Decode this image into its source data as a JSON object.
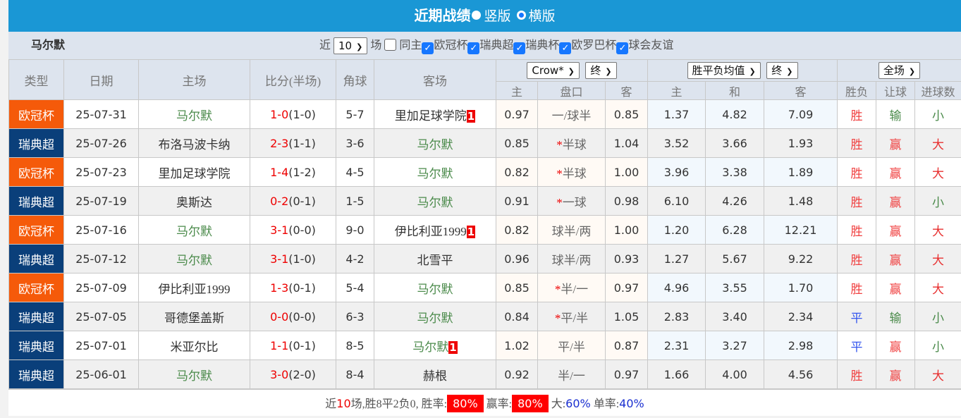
{
  "title": {
    "text": "近期战绩",
    "option_vertical": "竖版",
    "option_horizontal": "横版",
    "selected": "横版"
  },
  "filter": {
    "team": "马尔默",
    "near_label": "近",
    "count_value": "10",
    "matches_label": "场",
    "same_home_label": "同主",
    "same_home_checked": false,
    "leagues": [
      {
        "label": "欧冠杯",
        "checked": true
      },
      {
        "label": "瑞典超",
        "checked": true
      },
      {
        "label": "瑞典杯",
        "checked": true
      },
      {
        "label": "欧罗巴杯",
        "checked": true
      },
      {
        "label": "球会友谊",
        "checked": true
      }
    ]
  },
  "header": {
    "type": "类型",
    "date": "日期",
    "home": "主场",
    "score": "比分(半场)",
    "corners": "角球",
    "away": "客场",
    "ah_company": "Crow*",
    "ah_stage": "终",
    "ep_type": "胜平负均值",
    "ep_stage": "终",
    "period": "全场",
    "sub": [
      "主",
      "盘口",
      "客",
      "主",
      "和",
      "客",
      "胜负",
      "让球",
      "进球数"
    ]
  },
  "colors": {
    "ucl": "#f55a0a",
    "swe": "#0a3f7a",
    "win": "#f04040",
    "lose": "#4a8a4a",
    "draw": "#3355ee",
    "big": "#e83030",
    "small": "#4a8a4a"
  },
  "rows": [
    {
      "type": "欧冠杯",
      "date": "25-07-31",
      "home": "马尔默",
      "score": "1-0",
      "ht": "(1-0)",
      "corners": "5-7",
      "away": "里加足球学院",
      "away_badge": "1",
      "ah_h": "0.97",
      "ah": "一/球半",
      "ah_star": false,
      "ah_a": "0.85",
      "w": "1.37",
      "d": "4.82",
      "l": "7.09",
      "r": "胜",
      "h": "输",
      "ou": "小"
    },
    {
      "type": "瑞典超",
      "date": "25-07-26",
      "home": "布洛马波卡纳",
      "score": "2-3",
      "ht": "(1-1)",
      "corners": "3-6",
      "away": "马尔默",
      "away_badge": "",
      "ah_h": "0.85",
      "ah": "半球",
      "ah_star": true,
      "ah_a": "1.04",
      "w": "3.52",
      "d": "3.66",
      "l": "1.93",
      "r": "胜",
      "h": "赢",
      "ou": "大"
    },
    {
      "type": "欧冠杯",
      "date": "25-07-23",
      "home": "里加足球学院",
      "score": "1-4",
      "ht": "(1-2)",
      "corners": "4-5",
      "away": "马尔默",
      "away_badge": "",
      "ah_h": "0.82",
      "ah": "半球",
      "ah_star": true,
      "ah_a": "1.00",
      "w": "3.96",
      "d": "3.38",
      "l": "1.89",
      "r": "胜",
      "h": "赢",
      "ou": "大"
    },
    {
      "type": "瑞典超",
      "date": "25-07-19",
      "home": "奥斯达",
      "score": "0-2",
      "ht": "(0-1)",
      "corners": "1-5",
      "away": "马尔默",
      "away_badge": "",
      "ah_h": "0.91",
      "ah": "一球",
      "ah_star": true,
      "ah_a": "0.98",
      "w": "6.10",
      "d": "4.26",
      "l": "1.48",
      "r": "胜",
      "h": "赢",
      "ou": "小"
    },
    {
      "type": "欧冠杯",
      "date": "25-07-16",
      "home": "马尔默",
      "score": "3-1",
      "ht": "(0-0)",
      "corners": "9-0",
      "away": "伊比利亚1999",
      "away_badge": "1",
      "ah_h": "0.82",
      "ah": "球半/两",
      "ah_star": false,
      "ah_a": "1.00",
      "w": "1.20",
      "d": "6.28",
      "l": "12.21",
      "r": "胜",
      "h": "赢",
      "ou": "大"
    },
    {
      "type": "瑞典超",
      "date": "25-07-12",
      "home": "马尔默",
      "score": "3-1",
      "ht": "(1-0)",
      "corners": "4-2",
      "away": "北雪平",
      "away_badge": "",
      "ah_h": "0.96",
      "ah": "球半/两",
      "ah_star": false,
      "ah_a": "0.93",
      "w": "1.27",
      "d": "5.67",
      "l": "9.22",
      "r": "胜",
      "h": "赢",
      "ou": "大"
    },
    {
      "type": "欧冠杯",
      "date": "25-07-09",
      "home": "伊比利亚1999",
      "score": "1-3",
      "ht": "(0-1)",
      "corners": "5-4",
      "away": "马尔默",
      "away_badge": "",
      "ah_h": "0.85",
      "ah": "半/一",
      "ah_star": true,
      "ah_a": "0.97",
      "w": "4.96",
      "d": "3.55",
      "l": "1.70",
      "r": "胜",
      "h": "赢",
      "ou": "大"
    },
    {
      "type": "瑞典超",
      "date": "25-07-05",
      "home": "哥德堡盖斯",
      "score": "0-0",
      "ht": "(0-0)",
      "corners": "6-3",
      "away": "马尔默",
      "away_badge": "",
      "ah_h": "0.84",
      "ah": "平/半",
      "ah_star": true,
      "ah_a": "1.05",
      "w": "2.83",
      "d": "3.40",
      "l": "2.34",
      "r": "平",
      "h": "输",
      "ou": "小"
    },
    {
      "type": "瑞典超",
      "date": "25-07-01",
      "home": "米亚尔比",
      "score": "1-1",
      "ht": "(0-1)",
      "corners": "8-5",
      "away": "马尔默",
      "away_badge": "1",
      "ah_h": "1.02",
      "ah": "平/半",
      "ah_star": false,
      "ah_a": "0.87",
      "w": "2.31",
      "d": "3.27",
      "l": "2.98",
      "r": "平",
      "h": "赢",
      "ou": "小"
    },
    {
      "type": "瑞典超",
      "date": "25-06-01",
      "home": "马尔默",
      "score": "3-0",
      "ht": "(2-0)",
      "corners": "8-4",
      "away": "赫根",
      "away_badge": "",
      "ah_h": "0.92",
      "ah": "半/一",
      "ah_star": false,
      "ah_a": "0.97",
      "w": "1.66",
      "d": "4.00",
      "l": "4.56",
      "r": "胜",
      "h": "赢",
      "ou": "大"
    }
  ],
  "footer": {
    "near": "近",
    "count": "10",
    "summary": "场,胜8平2负0,",
    "win_rate_label": "胜率:",
    "win_rate": "80%",
    "cover_rate_label": "赢率:",
    "cover_rate": "80%",
    "big_label": "大:",
    "big_rate": "60%",
    "odd_label": "单率:",
    "odd_rate": "40%"
  }
}
